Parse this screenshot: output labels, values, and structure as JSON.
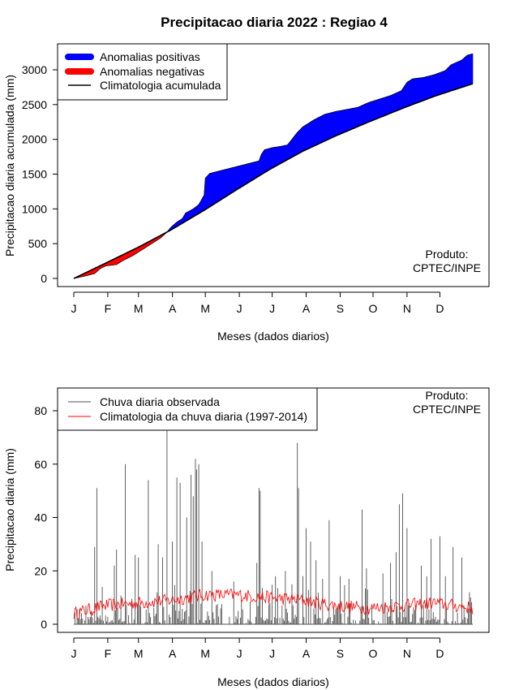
{
  "title": "Precipitacao diaria 2022 : Regiao 4",
  "chart_data": [
    {
      "type": "area",
      "name": "accumulated",
      "xlabel": "Meses (dados diarios)",
      "ylabel": "Precipitacao diaria acumulada (mm)",
      "xlim": [
        1,
        365
      ],
      "ylim": [
        0,
        3250
      ],
      "yticks": [
        0,
        500,
        1000,
        1500,
        2000,
        2500,
        3000
      ],
      "month_ticks": [
        {
          "label": "J",
          "day": 1
        },
        {
          "label": "F",
          "day": 32
        },
        {
          "label": "M",
          "day": 60
        },
        {
          "label": "A",
          "day": 91
        },
        {
          "label": "M",
          "day": 121
        },
        {
          "label": "J",
          "day": 152
        },
        {
          "label": "J",
          "day": 182
        },
        {
          "label": "A",
          "day": 213
        },
        {
          "label": "S",
          "day": 244
        },
        {
          "label": "O",
          "day": 274
        },
        {
          "label": "N",
          "day": 305
        },
        {
          "label": "D",
          "day": 335
        }
      ],
      "legend": [
        {
          "label": "Anomalias positivas",
          "color": "#0000ff",
          "kind": "thick"
        },
        {
          "label": "Anomalias negativas",
          "color": "#ff0000",
          "kind": "thick"
        },
        {
          "label": "Climatologia acumulada",
          "color": "#000000",
          "kind": "line"
        }
      ],
      "credit": [
        "Produto:",
        "CPTEC/INPE"
      ],
      "observed_keypoints": {
        "day": [
          1,
          10,
          20,
          25,
          30,
          40,
          45,
          50,
          55,
          60,
          66,
          70,
          75,
          80,
          85,
          90,
          95,
          100,
          103,
          110,
          115,
          120,
          121,
          125,
          130,
          150,
          160,
          170,
          172,
          175,
          182,
          190,
          196,
          200,
          205,
          210,
          220,
          230,
          240,
          260,
          270,
          280,
          290,
          300,
          305,
          310,
          320,
          330,
          340,
          345,
          355,
          360,
          365
        ],
        "mm": [
          0,
          30,
          70,
          140,
          180,
          200,
          250,
          290,
          330,
          380,
          440,
          480,
          530,
          580,
          650,
          740,
          810,
          860,
          940,
          1000,
          1060,
          1200,
          1440,
          1510,
          1530,
          1610,
          1650,
          1690,
          1780,
          1850,
          1880,
          1900,
          1920,
          2000,
          2100,
          2180,
          2280,
          2360,
          2400,
          2460,
          2530,
          2580,
          2630,
          2700,
          2820,
          2870,
          2890,
          2930,
          2990,
          3070,
          3140,
          3210,
          3230
        ]
      },
      "climatology_keypoints": {
        "day": [
          1,
          30,
          60,
          90,
          120,
          150,
          180,
          210,
          240,
          270,
          300,
          330,
          365
        ],
        "mm": [
          0,
          220,
          450,
          700,
          980,
          1280,
          1570,
          1830,
          2050,
          2250,
          2440,
          2620,
          2800
        ]
      }
    },
    {
      "type": "line",
      "name": "daily",
      "xlabel": "Meses (dados diarios)",
      "ylabel": "Precipitacao diaria (mm)",
      "xlim": [
        1,
        365
      ],
      "ylim": [
        0,
        88
      ],
      "yticks": [
        0,
        20,
        40,
        60,
        80
      ],
      "legend": [
        {
          "label": "Chuva diaria observada",
          "color": "#505050",
          "kind": "line"
        },
        {
          "label": "Climatologia da chuva diaria (1997-2014)",
          "color": "#ff0000",
          "kind": "line"
        }
      ],
      "credit": [
        "Produto:",
        "CPTEC/INPE"
      ],
      "observed_peaks": [
        {
          "day": 20,
          "mm": 29
        },
        {
          "day": 22,
          "mm": 51
        },
        {
          "day": 27,
          "mm": 14
        },
        {
          "day": 38,
          "mm": 22
        },
        {
          "day": 40,
          "mm": 28
        },
        {
          "day": 48,
          "mm": 60
        },
        {
          "day": 57,
          "mm": 26
        },
        {
          "day": 60,
          "mm": 25
        },
        {
          "day": 69,
          "mm": 54
        },
        {
          "day": 78,
          "mm": 30
        },
        {
          "day": 82,
          "mm": 25
        },
        {
          "day": 86,
          "mm": 73
        },
        {
          "day": 91,
          "mm": 31
        },
        {
          "day": 95,
          "mm": 55
        },
        {
          "day": 98,
          "mm": 53
        },
        {
          "day": 104,
          "mm": 40
        },
        {
          "day": 108,
          "mm": 56
        },
        {
          "day": 110,
          "mm": 48
        },
        {
          "day": 112,
          "mm": 62
        },
        {
          "day": 113,
          "mm": 58
        },
        {
          "day": 115,
          "mm": 60
        },
        {
          "day": 118,
          "mm": 31
        },
        {
          "day": 127,
          "mm": 20
        },
        {
          "day": 147,
          "mm": 16
        },
        {
          "day": 168,
          "mm": 23
        },
        {
          "day": 170,
          "mm": 51
        },
        {
          "day": 171,
          "mm": 50
        },
        {
          "day": 185,
          "mm": 18
        },
        {
          "day": 194,
          "mm": 20
        },
        {
          "day": 200,
          "mm": 15
        },
        {
          "day": 205,
          "mm": 68
        },
        {
          "day": 206,
          "mm": 51
        },
        {
          "day": 210,
          "mm": 18
        },
        {
          "day": 213,
          "mm": 36
        },
        {
          "day": 217,
          "mm": 31
        },
        {
          "day": 222,
          "mm": 24
        },
        {
          "day": 228,
          "mm": 17
        },
        {
          "day": 234,
          "mm": 39
        },
        {
          "day": 244,
          "mm": 18
        },
        {
          "day": 252,
          "mm": 17
        },
        {
          "day": 264,
          "mm": 43
        },
        {
          "day": 268,
          "mm": 21
        },
        {
          "day": 283,
          "mm": 19
        },
        {
          "day": 290,
          "mm": 23
        },
        {
          "day": 295,
          "mm": 27
        },
        {
          "day": 298,
          "mm": 45
        },
        {
          "day": 301,
          "mm": 49
        },
        {
          "day": 305,
          "mm": 36
        },
        {
          "day": 318,
          "mm": 22
        },
        {
          "day": 323,
          "mm": 18
        },
        {
          "day": 327,
          "mm": 32
        },
        {
          "day": 335,
          "mm": 33
        },
        {
          "day": 340,
          "mm": 18
        },
        {
          "day": 347,
          "mm": 29
        },
        {
          "day": 355,
          "mm": 25
        },
        {
          "day": 362,
          "mm": 12
        }
      ],
      "climatology_keypoints": {
        "day": [
          1,
          30,
          60,
          90,
          120,
          150,
          180,
          210,
          240,
          270,
          300,
          330,
          365
        ],
        "mm": [
          4,
          7,
          8,
          9,
          11,
          11,
          10,
          9,
          7,
          6,
          7,
          8,
          6
        ]
      }
    }
  ]
}
